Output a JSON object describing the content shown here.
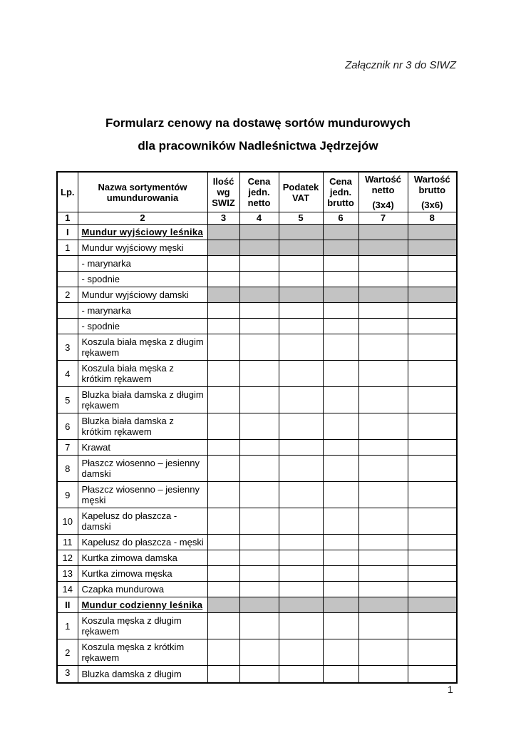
{
  "annotation": "Załącznik nr 3 do SIWZ",
  "title": {
    "line1": "Formularz cenowy na dostawę sortów mundurowych",
    "line2": "dla pracowników Nadleśnictwa Jędrzejów"
  },
  "table": {
    "shade_color": "#c3c3c3",
    "columns": [
      {
        "label": "Lp.",
        "sub": "",
        "num": "1"
      },
      {
        "label": "Nazwa sortymentów umundurowania",
        "sub": "",
        "num": "2"
      },
      {
        "label": "Ilość wg SWIZ",
        "sub": "",
        "num": "3"
      },
      {
        "label": "Cena jedn. netto",
        "sub": "",
        "num": "4"
      },
      {
        "label": "Podatek VAT",
        "sub": "",
        "num": "5"
      },
      {
        "label": "Cena jedn. brutto",
        "sub": "",
        "num": "6"
      },
      {
        "label": "Wartość netto",
        "sub": "(3x4)",
        "num": "7"
      },
      {
        "label": "Wartość brutto",
        "sub": "(3x6)",
        "num": "8"
      }
    ],
    "rows": [
      {
        "lp": "I",
        "name": "Mundur wyjściowy leśnika",
        "section": true,
        "shaded": true
      },
      {
        "lp": "1",
        "name": "Mundur wyjściowy męski",
        "shaded": true
      },
      {
        "lp": "",
        "name": "- marynarka"
      },
      {
        "lp": "",
        "name": "- spodnie"
      },
      {
        "lp": "2",
        "name": "Mundur wyjściowy damski",
        "shaded": true
      },
      {
        "lp": "",
        "name": "- marynarka"
      },
      {
        "lp": "",
        "name": "- spodnie"
      },
      {
        "lp": "3",
        "name": "Koszula biała męska z długim rękawem"
      },
      {
        "lp": "4",
        "name": "Koszula biała męska z krótkim rękawem"
      },
      {
        "lp": "5",
        "name": "Bluzka biała damska z długim rękawem"
      },
      {
        "lp": "6",
        "name": "Bluzka biała damska z krótkim rękawem"
      },
      {
        "lp": "7",
        "name": "Krawat"
      },
      {
        "lp": "8",
        "name": "Płaszcz wiosenno – jesienny damski"
      },
      {
        "lp": "9",
        "name": "Płaszcz wiosenno – jesienny męski"
      },
      {
        "lp": "10",
        "name": "Kapelusz do płaszcza -damski"
      },
      {
        "lp": "11",
        "name": "Kapelusz do płaszcza - męski"
      },
      {
        "lp": "12",
        "name": "Kurtka zimowa damska"
      },
      {
        "lp": "13",
        "name": "Kurtka zimowa męska"
      },
      {
        "lp": "14",
        "name": "Czapka mundurowa"
      },
      {
        "lp": "II",
        "name": "Mundur codzienny leśnika",
        "section": true,
        "shaded": true
      },
      {
        "lp": "1",
        "name": "Koszula męska z długim rękawem"
      },
      {
        "lp": "2",
        "name": "Koszula męska z krótkim rękawem"
      },
      {
        "lp": "3",
        "name": "Bluzka damska z długim",
        "partial": true
      }
    ]
  },
  "footer": {
    "page_number": "1"
  }
}
